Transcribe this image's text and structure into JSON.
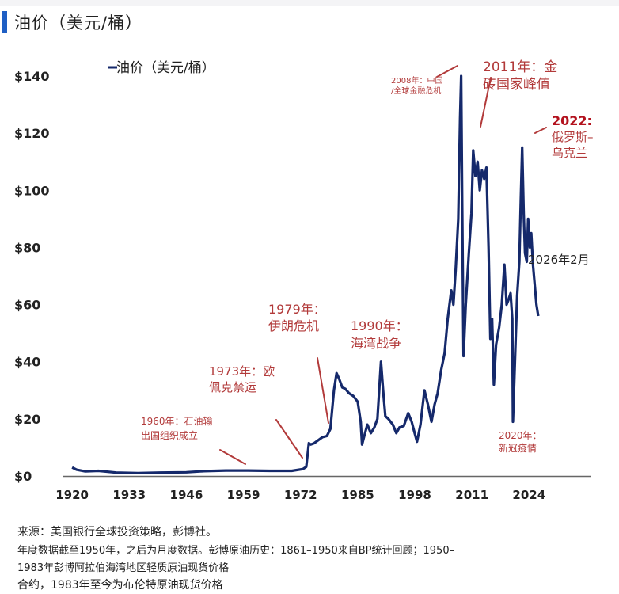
{
  "page": {
    "title": "油价（美元/桶）"
  },
  "footer": {
    "source": "来源：美国银行全球投资策略，彭博社。",
    "note_line1": "年度数据截至1950年，之后为月度数据。彭博原油历史：1861–1950来自BP统计回顾；1950–",
    "note_line2": "1983年彭博阿拉伯海湾地区轻质原油现货价格",
    "note_line3": "合约，1983年至今为布伦特原油现货价格"
  },
  "colors": {
    "line": "#15296b",
    "annotation": "#b23a3a",
    "annotation_bold": "#b3121e",
    "title_accent": "#1f5fc4",
    "axis": "#666666"
  },
  "chart_data": {
    "type": "line",
    "title": "",
    "xlabel": "",
    "ylabel": "",
    "xlim": [
      1918,
      2038
    ],
    "ylim": [
      0,
      145
    ],
    "xticks": [
      1920,
      1933,
      1946,
      1959,
      1972,
      1985,
      1998,
      2011,
      2024
    ],
    "yticks": [
      0,
      20,
      40,
      60,
      80,
      100,
      120,
      140
    ],
    "ytick_labels": [
      "$0",
      "$20",
      "$40",
      "$60",
      "$80",
      "$100",
      "$120",
      "$140"
    ],
    "grid": false,
    "legend": {
      "position": "top-left",
      "label": "油价（美元/桶）"
    },
    "series": [
      {
        "name": "油价（美元/桶）",
        "x": [
          1920,
          1921,
          1923,
          1926,
          1930,
          1935,
          1940,
          1946,
          1950,
          1955,
          1960,
          1965,
          1970,
          1972.5,
          1973.3,
          1973.9,
          1974.3,
          1975,
          1976,
          1977,
          1978,
          1978.8,
          1979.6,
          1980.2,
          1980.8,
          1981.5,
          1982.2,
          1983,
          1984,
          1985,
          1985.7,
          1986.0,
          1986.5,
          1987.2,
          1988,
          1988.8,
          1989.5,
          1990.3,
          1990.8,
          1991.3,
          1992,
          1993,
          1993.8,
          1994.5,
          1995.5,
          1996.5,
          1997.3,
          1997.8,
          1998.5,
          1999.3,
          2000.2,
          2001,
          2001.8,
          2002.5,
          2003.2,
          2004,
          2004.8,
          2005.5,
          2006.3,
          2006.8,
          2007.3,
          2007.9,
          2008.3,
          2008.55,
          2008.8,
          2009.1,
          2009.6,
          2010.3,
          2010.9,
          2011.3,
          2011.8,
          2012.3,
          2012.8,
          2013.3,
          2013.8,
          2014.3,
          2014.8,
          2015.2,
          2015.6,
          2016.0,
          2016.5,
          2017.2,
          2017.8,
          2018.4,
          2018.9,
          2019.4,
          2019.8,
          2020.2,
          2020.35,
          2020.8,
          2021.3,
          2021.8,
          2022.1,
          2022.45,
          2022.8,
          2023.1,
          2023.5,
          2023.8,
          2024.2,
          2024.5,
          2024.9,
          2025.3,
          2025.7,
          2026.1
        ],
        "values": [
          3.0,
          2.2,
          1.6,
          1.8,
          1.2,
          1.0,
          1.2,
          1.3,
          1.7,
          1.9,
          1.9,
          1.8,
          1.8,
          2.4,
          3.2,
          11.5,
          11.0,
          11.4,
          12.5,
          13.6,
          14.0,
          16.5,
          30.0,
          36.0,
          34.0,
          31.0,
          30.5,
          29.0,
          28.0,
          26.0,
          19.0,
          11.0,
          14.0,
          18.0,
          15.0,
          17.0,
          20.0,
          40.0,
          30.0,
          21.0,
          20.0,
          18.0,
          15.0,
          17.0,
          17.5,
          22.0,
          19.0,
          16.0,
          12.0,
          18.0,
          30.0,
          25.0,
          19.0,
          25.0,
          29.0,
          37.0,
          43.0,
          55.0,
          65.0,
          60.0,
          72.0,
          90.0,
          125.0,
          140.0,
          95.0,
          42.0,
          60.0,
          78.0,
          92.0,
          114.0,
          105.0,
          110.0,
          100.0,
          107.0,
          104.0,
          108.0,
          80.0,
          48.0,
          55.0,
          32.0,
          46.0,
          52.0,
          60.0,
          74.0,
          60.0,
          62.0,
          64.0,
          55.0,
          19.0,
          40.0,
          63.0,
          75.0,
          95.0,
          115.0,
          92.0,
          78.0,
          75.0,
          90.0,
          80.0,
          85.0,
          74.0,
          67.0,
          60.0,
          56.0
        ]
      }
    ],
    "annotations": [
      {
        "id": "ann-1960",
        "lines": [
          "1960年：石油输",
          "出国组织成立"
        ],
        "x": 1960,
        "y": 2
      },
      {
        "id": "ann-1973",
        "lines": [
          "1973年：欧",
          "佩克禁运"
        ],
        "x": 1973,
        "y": 6
      },
      {
        "id": "ann-1979",
        "lines": [
          "1979年：",
          "伊朗危机"
        ],
        "x": 1979,
        "y": 18
      },
      {
        "id": "ann-1990",
        "lines": [
          "1990年：",
          "海湾战争"
        ],
        "x": 1990,
        "y": 40
      },
      {
        "id": "ann-2008",
        "lines": [
          "2008年：中国",
          "/全球金融危机"
        ],
        "x": 2008,
        "y": 140
      },
      {
        "id": "ann-2011",
        "lines": [
          "2011年：金",
          "砖国家峰值"
        ],
        "x": 2011,
        "y": 114
      },
      {
        "id": "ann-2020",
        "lines": [
          "2020年：",
          "新冠疫情"
        ],
        "x": 2020,
        "y": 19
      },
      {
        "id": "ann-2022",
        "lines": [
          "2022:",
          "俄罗斯–",
          "乌克兰"
        ],
        "x": 2022,
        "y": 115
      },
      {
        "id": "ann-2026",
        "lines": [
          "2026年2月"
        ],
        "x": 2026,
        "y": 60
      }
    ]
  }
}
